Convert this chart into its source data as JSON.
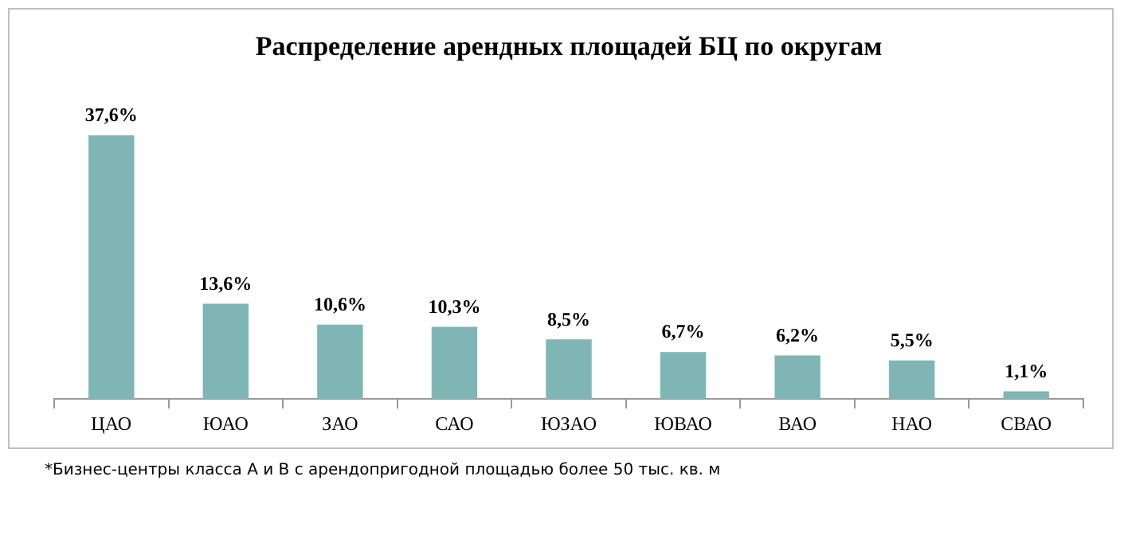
{
  "chart_data": {
    "type": "bar",
    "title": "Распределение арендных площадей БЦ по округам",
    "categories": [
      "ЦАО",
      "ЮАО",
      "ЗАО",
      "САО",
      "ЮЗАО",
      "ЮВАО",
      "ВАО",
      "НАО",
      "СВАО"
    ],
    "values": [
      37.6,
      13.6,
      10.6,
      10.3,
      8.5,
      6.7,
      6.2,
      5.5,
      1.1
    ],
    "value_labels": [
      "37,6%",
      "13,6%",
      "10,6%",
      "10,3%",
      "8,5%",
      "6,7%",
      "6,2%",
      "5,5%",
      "1,1%"
    ],
    "color": "#7fb5b5",
    "grid": false,
    "legend": false,
    "tick_labels": "x",
    "annotations": [
      "*Бизнес-центры класса А и В с арендопригодной площадью более 50 тыс. кв. м"
    ]
  }
}
